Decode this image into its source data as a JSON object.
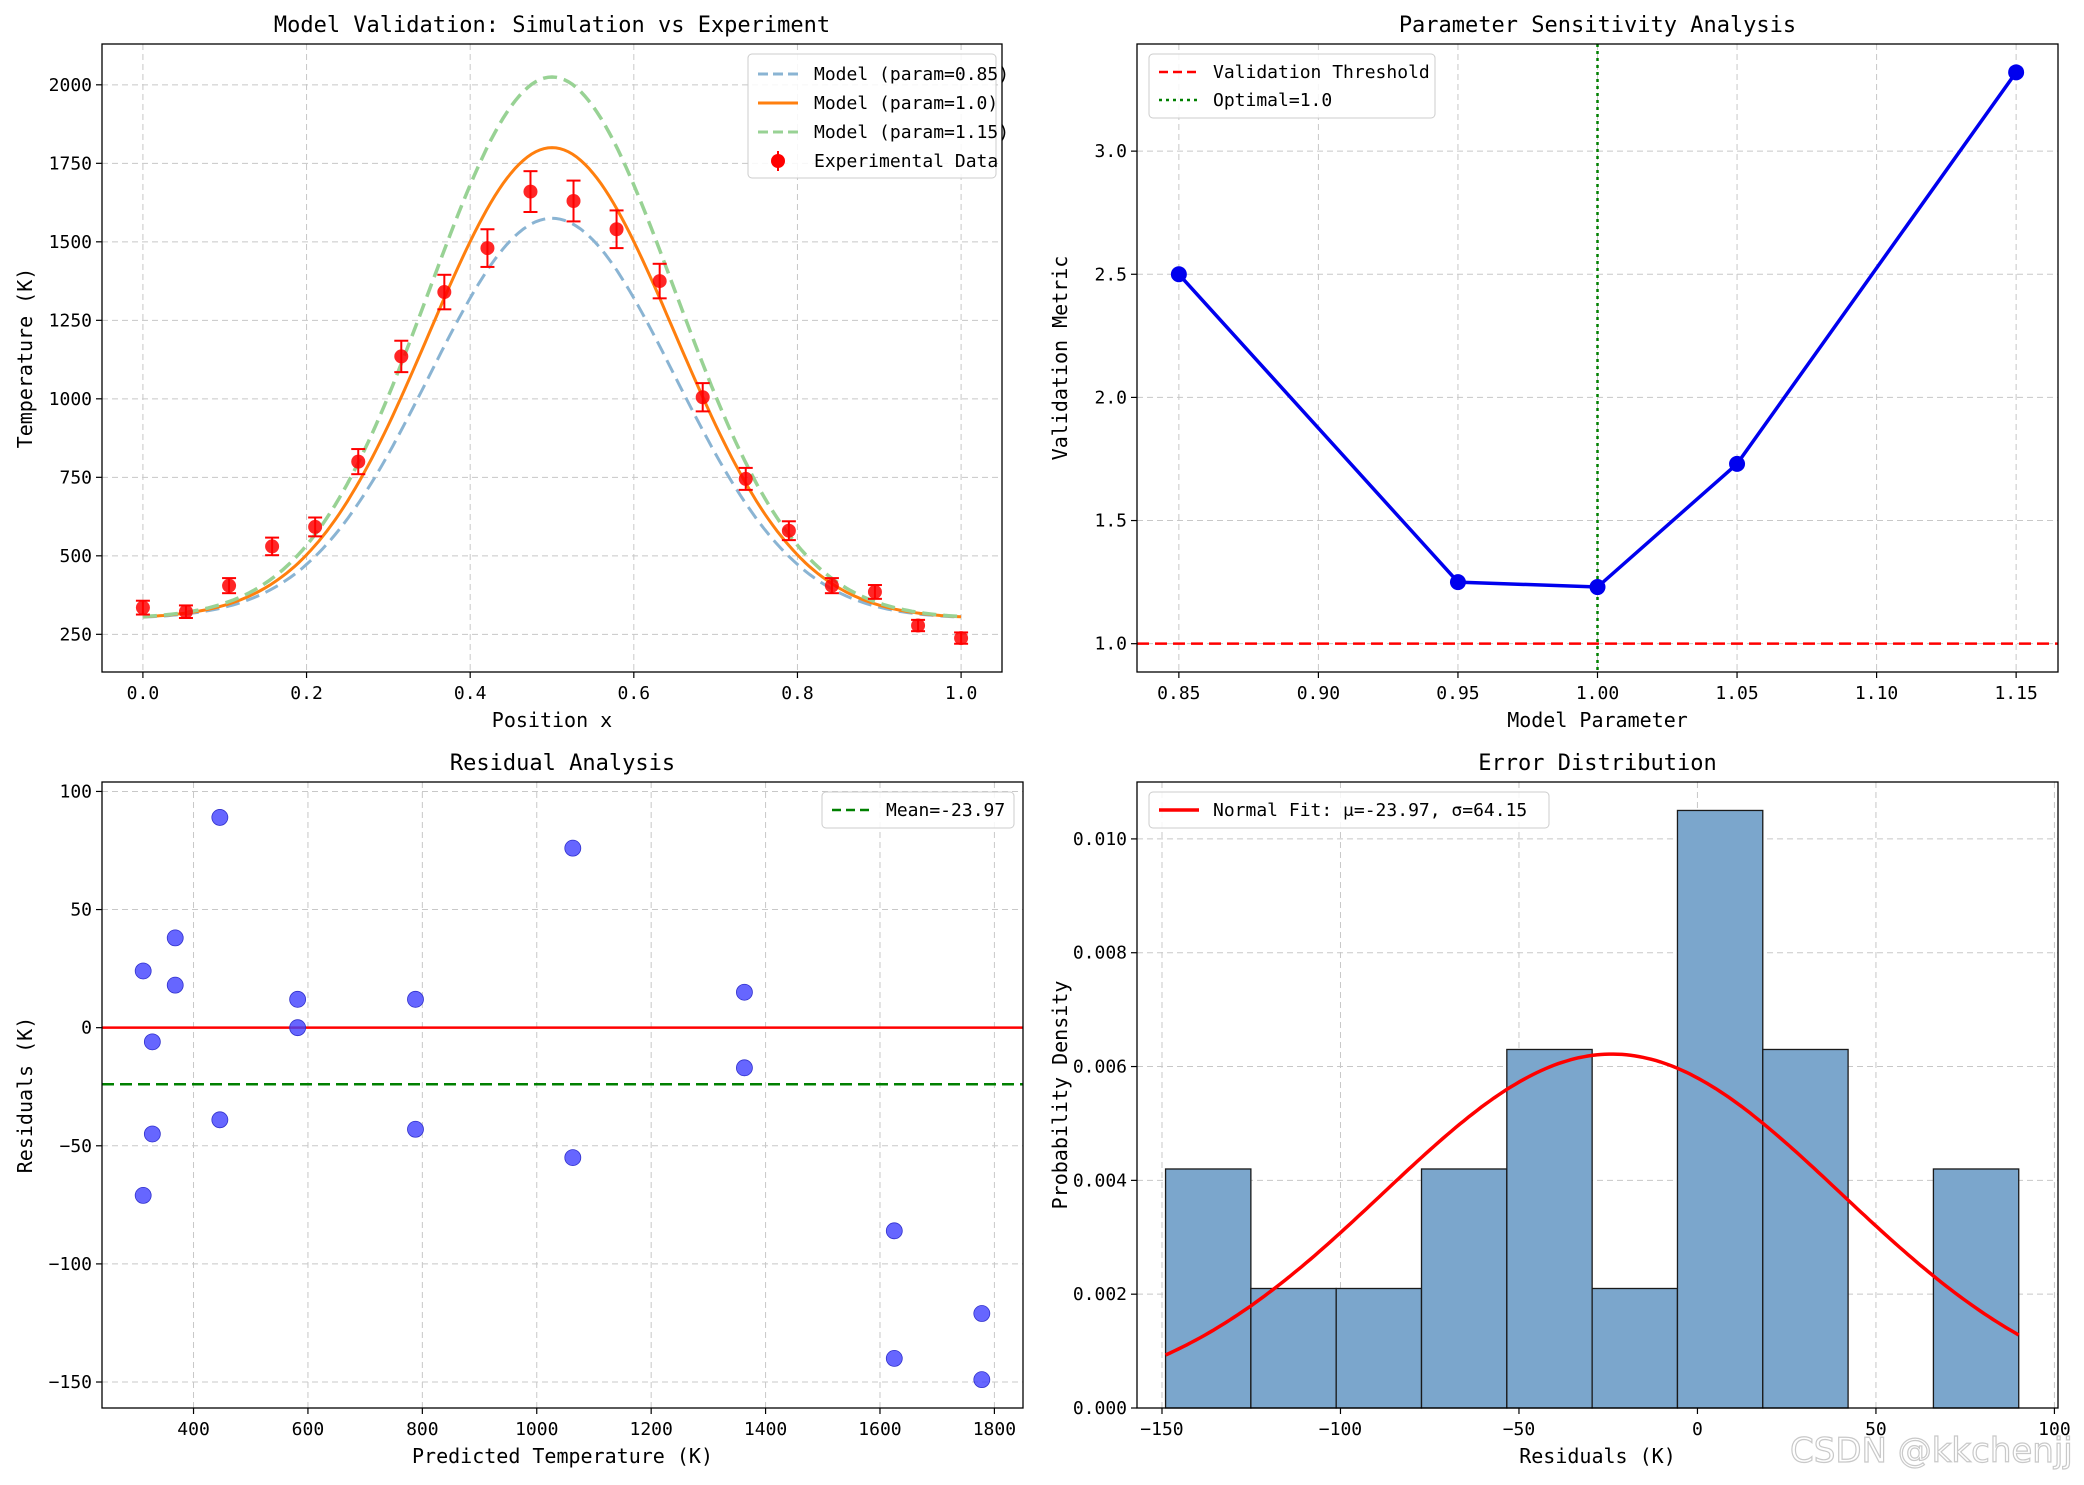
{
  "watermark": "CSDN @kkchenjj",
  "chart_data": [
    {
      "type": "line",
      "title": "Model Validation: Simulation vs Experiment",
      "xlabel": "Position x",
      "ylabel": "Temperature (K)",
      "xlim": [
        -0.05,
        1.05
      ],
      "ylim": [
        130,
        2130
      ],
      "xticks": [
        0.0,
        0.2,
        0.4,
        0.6,
        0.8,
        1.0
      ],
      "xtick_labels": [
        "0.0",
        "0.2",
        "0.4",
        "0.6",
        "0.8",
        "1.0"
      ],
      "yticks": [
        250,
        500,
        750,
        1000,
        1250,
        1500,
        1750,
        2000
      ],
      "ytick_labels": [
        "250",
        "500",
        "750",
        "1000",
        "1250",
        "1500",
        "1750",
        "2000"
      ],
      "grid": true,
      "legend_position": "top-right",
      "series": [
        {
          "name": "Model (param=0.85)",
          "style": "dashed",
          "color": "#8ab4d3",
          "model": {
            "base": 300,
            "peak": 1275,
            "center": 0.5,
            "sigma": 0.15
          }
        },
        {
          "name": "Model (param=1.0)",
          "style": "solid",
          "color": "#ff7f0e",
          "model": {
            "base": 300,
            "peak": 1500,
            "center": 0.5,
            "sigma": 0.15
          }
        },
        {
          "name": "Model (param=1.15)",
          "style": "dashed",
          "color": "#98d294",
          "model": {
            "base": 300,
            "peak": 1725,
            "center": 0.5,
            "sigma": 0.15
          }
        }
      ],
      "experimental": {
        "name": "Experimental Data",
        "color": "#ff0000",
        "x": [
          0.0,
          0.0526,
          0.1053,
          0.1579,
          0.2105,
          0.2632,
          0.3158,
          0.3684,
          0.4211,
          0.4737,
          0.5263,
          0.5789,
          0.6316,
          0.6842,
          0.7368,
          0.7895,
          0.8421,
          0.8947,
          0.9474,
          1.0
        ],
        "y": [
          335,
          322,
          405,
          530,
          592,
          800,
          1135,
          1340,
          1480,
          1660,
          1630,
          1540,
          1375,
          1005,
          745,
          580,
          405,
          385,
          278,
          238
        ],
        "err": [
          22,
          20,
          24,
          28,
          30,
          40,
          50,
          55,
          60,
          65,
          65,
          60,
          55,
          45,
          35,
          30,
          24,
          22,
          18,
          18
        ]
      }
    },
    {
      "type": "line",
      "title": "Parameter Sensitivity Analysis",
      "xlabel": "Model Parameter",
      "ylabel": "Validation Metric",
      "xlim": [
        0.835,
        1.165
      ],
      "ylim": [
        0.885,
        3.435
      ],
      "xticks": [
        0.85,
        0.9,
        0.95,
        1.0,
        1.05,
        1.1,
        1.15
      ],
      "xtick_labels": [
        "0.85",
        "0.90",
        "0.95",
        "1.00",
        "1.05",
        "1.10",
        "1.15"
      ],
      "yticks": [
        1.0,
        1.5,
        2.0,
        2.5,
        3.0
      ],
      "ytick_labels": [
        "1.0",
        "1.5",
        "2.0",
        "2.5",
        "3.0"
      ],
      "grid": true,
      "legend_position": "top-left",
      "series": [
        {
          "name": "",
          "x": [
            0.85,
            0.95,
            1.0,
            1.05,
            1.15
          ],
          "values": [
            2.5,
            1.25,
            1.23,
            1.73,
            3.32
          ],
          "color": "#0000ee"
        }
      ],
      "threshold": {
        "name": "Validation Threshold",
        "value": 1.0,
        "color": "#ff0000"
      },
      "optimal": {
        "name": "Optimal=1.0",
        "value": 1.0,
        "color": "#008000"
      }
    },
    {
      "type": "scatter",
      "title": "Residual Analysis",
      "xlabel": "Predicted Temperature (K)",
      "ylabel": "Residuals (K)",
      "xlim": [
        240,
        1850
      ],
      "ylim": [
        -161,
        104
      ],
      "xticks": [
        400,
        600,
        800,
        1000,
        1200,
        1400,
        1600,
        1800
      ],
      "xtick_labels": [
        "400",
        "600",
        "800",
        "1000",
        "1200",
        "1400",
        "1600",
        "1800"
      ],
      "yticks": [
        -150,
        -100,
        -50,
        0,
        50,
        100
      ],
      "ytick_labels": [
        "−150",
        "−100",
        "−50",
        "0",
        "50",
        "100"
      ],
      "grid": true,
      "legend_position": "top-right",
      "x": [
        312,
        312,
        328,
        328,
        368,
        368,
        446,
        446,
        582,
        582,
        788,
        788,
        1063,
        1063,
        1363,
        1363,
        1625,
        1625,
        1778,
        1778
      ],
      "y": [
        24,
        -71,
        -6,
        -45,
        38,
        18,
        89,
        -39,
        12,
        0,
        12,
        -43,
        76,
        -55,
        15,
        -17,
        -86,
        -140,
        -121,
        -149
      ],
      "color": "#4040ff",
      "zero_line": {
        "value": 0,
        "color": "#ff0000"
      },
      "mean_line": {
        "name": "Mean=-23.97",
        "value": -23.97,
        "color": "#008000"
      }
    },
    {
      "type": "bar",
      "title": "Error Distribution",
      "xlabel": "Residuals (K)",
      "ylabel": "Probability Density",
      "xlim": [
        -157,
        101
      ],
      "ylim": [
        0,
        0.011
      ],
      "xticks": [
        -150,
        -100,
        -50,
        0,
        50,
        100
      ],
      "xtick_labels": [
        "−150",
        "−100",
        "−50",
        "0",
        "50",
        "100"
      ],
      "yticks": [
        0.0,
        0.002,
        0.004,
        0.006,
        0.008,
        0.01
      ],
      "ytick_labels": [
        "0.000",
        "0.002",
        "0.004",
        "0.006",
        "0.008",
        "0.010"
      ],
      "grid": true,
      "legend_position": "top-left",
      "bin_edges": [
        -149,
        -125.1,
        -101.2,
        -77.3,
        -53.4,
        -29.5,
        -5.6,
        18.3,
        42.2,
        66.1,
        90
      ],
      "values": [
        0.0042,
        0.0021,
        0.0021,
        0.0042,
        0.0063,
        0.0021,
        0.0105,
        0.0063,
        0.0,
        0.0042
      ],
      "bar_color": "#7ba6cc",
      "fit": {
        "name": "Normal Fit: μ=-23.97, σ=64.15",
        "mu": -23.97,
        "sigma": 64.15,
        "color": "#ff0000"
      }
    }
  ]
}
